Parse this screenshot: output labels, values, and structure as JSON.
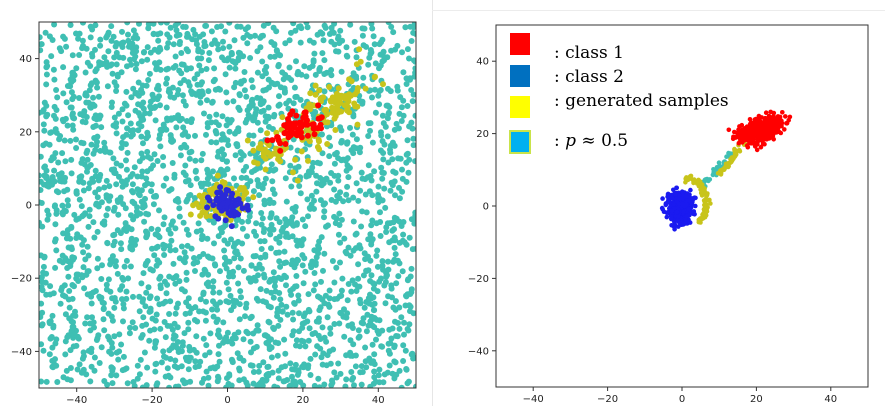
{
  "chart_data": [
    {
      "type": "scatter",
      "xlim": [
        -50,
        50
      ],
      "ylim": [
        -50,
        50
      ],
      "xticks": [
        -40,
        -20,
        0,
        20,
        40
      ],
      "yticks": [
        -40,
        -20,
        0,
        20,
        40
      ],
      "tick_labels_x": [
        "−40",
        "−20",
        "0",
        "20",
        "40"
      ],
      "tick_labels_y": [
        "−40",
        "−20",
        "0",
        "20",
        "40"
      ],
      "grid": false,
      "series": [
        {
          "color": "#3fbfb3",
          "distribution": "uniform",
          "x_range": [
            -50,
            50
          ],
          "y_range": [
            -50,
            50
          ],
          "approx_points": 2600
        },
        {
          "color": "#c8c41a",
          "distribution": "band",
          "from": [
            8,
            12
          ],
          "to": [
            36,
            33
          ],
          "width": 6,
          "approx_points": 150
        },
        {
          "color": "#ff0000",
          "distribution": "cluster",
          "center": [
            19,
            21
          ],
          "spread": [
            5,
            3
          ],
          "approx_points": 60
        },
        {
          "color": "#c8c41a",
          "distribution": "cluster",
          "center": [
            -1,
            1
          ],
          "spread": [
            6,
            5
          ],
          "approx_points": 110
        },
        {
          "color": "#2a2ad8",
          "distribution": "cluster",
          "center": [
            0,
            0
          ],
          "spread": [
            4,
            3.5
          ],
          "approx_points": 70
        }
      ]
    },
    {
      "type": "scatter",
      "xlim": [
        -50,
        50
      ],
      "ylim": [
        -50,
        50
      ],
      "xticks": [
        -40,
        -20,
        0,
        20,
        40
      ],
      "yticks": [
        -40,
        -20,
        0,
        20,
        40
      ],
      "tick_labels_x": [
        "−40",
        "−20",
        "0",
        "20",
        "40"
      ],
      "tick_labels_y": [
        "−40",
        "−20",
        "0",
        "20",
        "40"
      ],
      "grid": false,
      "legend_placement": "top-left",
      "legend": [
        {
          "label": ": class 1",
          "color": "#ff0000"
        },
        {
          "label": ": class 2",
          "color": "#0070c0"
        },
        {
          "label": ": generated samples",
          "color": "#ffff00"
        },
        {
          "label": ": p ≈ 0.5",
          "color": "#00b0f0"
        }
      ],
      "series": [
        {
          "color": "#3fbfb3",
          "distribution": "path",
          "from": [
            5,
            5
          ],
          "to": [
            14,
            15
          ],
          "approx_points": 40
        },
        {
          "color": "#c8c41a",
          "distribution": "arc",
          "around": [
            0,
            0
          ],
          "from": [
            -3,
            8
          ],
          "to": [
            7,
            -5
          ],
          "approx_points": 90
        },
        {
          "color": "#c8c41a",
          "distribution": "path",
          "from": [
            10,
            9
          ],
          "to": [
            18,
            19
          ],
          "approx_points": 50
        },
        {
          "color": "#ff0000",
          "distribution": "cluster",
          "center": [
            21,
            21
          ],
          "spread": [
            3.5,
            2.5
          ],
          "approx_points": 600
        },
        {
          "color": "#1a1af0",
          "distribution": "cluster",
          "center": [
            -0.5,
            0
          ],
          "spread": [
            2.5,
            3.5
          ],
          "approx_points": 600
        }
      ]
    }
  ]
}
